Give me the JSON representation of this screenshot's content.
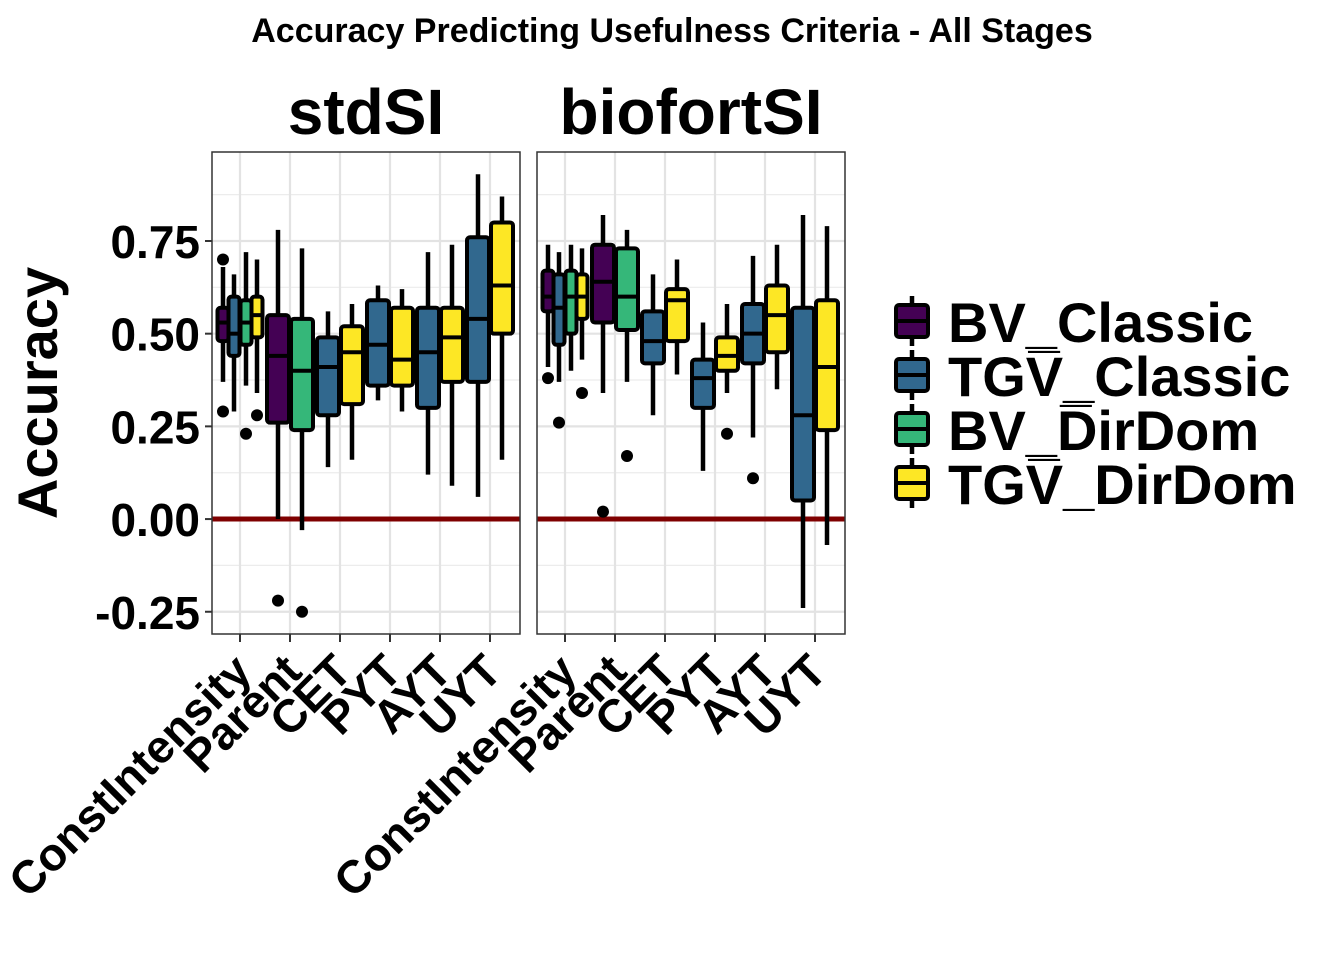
{
  "chart_data": {
    "type": "boxplot",
    "title": "Accuracy Predicting Usefulness Criteria - All Stages",
    "ylabel": "Accuracy",
    "xlabel": "",
    "ylim": [
      -0.31,
      0.99
    ],
    "yticks": [
      -0.25,
      0.0,
      0.25,
      0.5,
      0.75
    ],
    "ytick_labels": [
      "-0.25",
      "0.00",
      "0.25",
      "0.50",
      "0.75"
    ],
    "reference_line": {
      "y": 0.0,
      "color": "#7f0000"
    },
    "grid": true,
    "legend_position": "right",
    "categories": [
      "ConstIntensity",
      "Parent",
      "CET",
      "PYT",
      "AYT",
      "UYT"
    ],
    "series": [
      {
        "name": "BV_Classic",
        "color": "#440154"
      },
      {
        "name": "TGV_Classic",
        "color": "#31688e"
      },
      {
        "name": "BV_DirDom",
        "color": "#35b779"
      },
      {
        "name": "TGV_DirDom",
        "color": "#fde725"
      }
    ],
    "legend_labels": [
      "BV_Classic",
      "TGV̅_Classic",
      "BV_D̅irDom",
      "TGV̅_DirDom"
    ],
    "panels": [
      {
        "name": "stdSI",
        "boxes": [
          {
            "category": "ConstIntensity",
            "series": "BV_Classic",
            "min": 0.37,
            "q1": 0.48,
            "median": 0.53,
            "q3": 0.57,
            "max": 0.68,
            "outliers": [
              0.7,
              0.29
            ]
          },
          {
            "category": "ConstIntensity",
            "series": "TGV_Classic",
            "min": 0.29,
            "q1": 0.44,
            "median": 0.5,
            "q3": 0.6,
            "max": 0.66,
            "outliers": []
          },
          {
            "category": "ConstIntensity",
            "series": "BV_DirDom",
            "min": 0.36,
            "q1": 0.47,
            "median": 0.53,
            "q3": 0.59,
            "max": 0.72,
            "outliers": [
              0.23
            ]
          },
          {
            "category": "ConstIntensity",
            "series": "TGV_DirDom",
            "min": 0.34,
            "q1": 0.49,
            "median": 0.55,
            "q3": 0.6,
            "max": 0.7,
            "outliers": [
              0.28
            ]
          },
          {
            "category": "Parent",
            "series": "BV_Classic",
            "min": 0.0,
            "q1": 0.26,
            "median": 0.44,
            "q3": 0.55,
            "max": 0.78,
            "outliers": [
              -0.22
            ]
          },
          {
            "category": "Parent",
            "series": "BV_DirDom",
            "min": -0.03,
            "q1": 0.24,
            "median": 0.4,
            "q3": 0.54,
            "max": 0.73,
            "outliers": [
              -0.25
            ]
          },
          {
            "category": "CET",
            "series": "TGV_Classic",
            "min": 0.14,
            "q1": 0.28,
            "median": 0.41,
            "q3": 0.49,
            "max": 0.56,
            "outliers": []
          },
          {
            "category": "CET",
            "series": "TGV_DirDom",
            "min": 0.16,
            "q1": 0.31,
            "median": 0.45,
            "q3": 0.52,
            "max": 0.58,
            "outliers": []
          },
          {
            "category": "PYT",
            "series": "TGV_Classic",
            "min": 0.32,
            "q1": 0.36,
            "median": 0.47,
            "q3": 0.59,
            "max": 0.63,
            "outliers": []
          },
          {
            "category": "PYT",
            "series": "TGV_DirDom",
            "min": 0.29,
            "q1": 0.36,
            "median": 0.43,
            "q3": 0.57,
            "max": 0.62,
            "outliers": []
          },
          {
            "category": "AYT",
            "series": "TGV_Classic",
            "min": 0.12,
            "q1": 0.3,
            "median": 0.45,
            "q3": 0.57,
            "max": 0.72,
            "outliers": []
          },
          {
            "category": "AYT",
            "series": "TGV_DirDom",
            "min": 0.09,
            "q1": 0.37,
            "median": 0.49,
            "q3": 0.57,
            "max": 0.74,
            "outliers": []
          },
          {
            "category": "UYT",
            "series": "TGV_Classic",
            "min": 0.06,
            "q1": 0.37,
            "median": 0.54,
            "q3": 0.76,
            "max": 0.93,
            "outliers": []
          },
          {
            "category": "UYT",
            "series": "TGV_DirDom",
            "min": 0.16,
            "q1": 0.5,
            "median": 0.63,
            "q3": 0.8,
            "max": 0.87,
            "outliers": []
          }
        ]
      },
      {
        "name": "biofortSI",
        "boxes": [
          {
            "category": "ConstIntensity",
            "series": "BV_Classic",
            "min": 0.41,
            "q1": 0.56,
            "median": 0.6,
            "q3": 0.67,
            "max": 0.74,
            "outliers": [
              0.38
            ]
          },
          {
            "category": "ConstIntensity",
            "series": "TGV_Classic",
            "min": 0.37,
            "q1": 0.47,
            "median": 0.57,
            "q3": 0.66,
            "max": 0.72,
            "outliers": [
              0.26
            ]
          },
          {
            "category": "ConstIntensity",
            "series": "BV_DirDom",
            "min": 0.4,
            "q1": 0.5,
            "median": 0.6,
            "q3": 0.67,
            "max": 0.74,
            "outliers": []
          },
          {
            "category": "ConstIntensity",
            "series": "TGV_DirDom",
            "min": 0.43,
            "q1": 0.54,
            "median": 0.6,
            "q3": 0.66,
            "max": 0.73,
            "outliers": [
              0.34
            ]
          },
          {
            "category": "Parent",
            "series": "BV_Classic",
            "min": 0.34,
            "q1": 0.53,
            "median": 0.64,
            "q3": 0.74,
            "max": 0.82,
            "outliers": [
              0.02
            ]
          },
          {
            "category": "Parent",
            "series": "BV_DirDom",
            "min": 0.37,
            "q1": 0.51,
            "median": 0.6,
            "q3": 0.73,
            "max": 0.78,
            "outliers": [
              0.17
            ]
          },
          {
            "category": "CET",
            "series": "TGV_Classic",
            "min": 0.28,
            "q1": 0.42,
            "median": 0.48,
            "q3": 0.56,
            "max": 0.66,
            "outliers": []
          },
          {
            "category": "CET",
            "series": "TGV_DirDom",
            "min": 0.39,
            "q1": 0.48,
            "median": 0.59,
            "q3": 0.62,
            "max": 0.7,
            "outliers": []
          },
          {
            "category": "PYT",
            "series": "TGV_Classic",
            "min": 0.13,
            "q1": 0.3,
            "median": 0.38,
            "q3": 0.43,
            "max": 0.53,
            "outliers": []
          },
          {
            "category": "PYT",
            "series": "TGV_DirDom",
            "min": 0.34,
            "q1": 0.4,
            "median": 0.44,
            "q3": 0.49,
            "max": 0.58,
            "outliers": [
              0.23
            ]
          },
          {
            "category": "AYT",
            "series": "TGV_Classic",
            "min": 0.22,
            "q1": 0.42,
            "median": 0.5,
            "q3": 0.58,
            "max": 0.71,
            "outliers": [
              0.11
            ]
          },
          {
            "category": "AYT",
            "series": "TGV_DirDom",
            "min": 0.35,
            "q1": 0.45,
            "median": 0.55,
            "q3": 0.63,
            "max": 0.74,
            "outliers": []
          },
          {
            "category": "UYT",
            "series": "TGV_Classic",
            "min": -0.24,
            "q1": 0.05,
            "median": 0.28,
            "q3": 0.57,
            "max": 0.82,
            "outliers": []
          },
          {
            "category": "UYT",
            "series": "TGV_DirDom",
            "min": -0.07,
            "q1": 0.24,
            "median": 0.41,
            "q3": 0.59,
            "max": 0.79,
            "outliers": []
          }
        ]
      }
    ]
  }
}
